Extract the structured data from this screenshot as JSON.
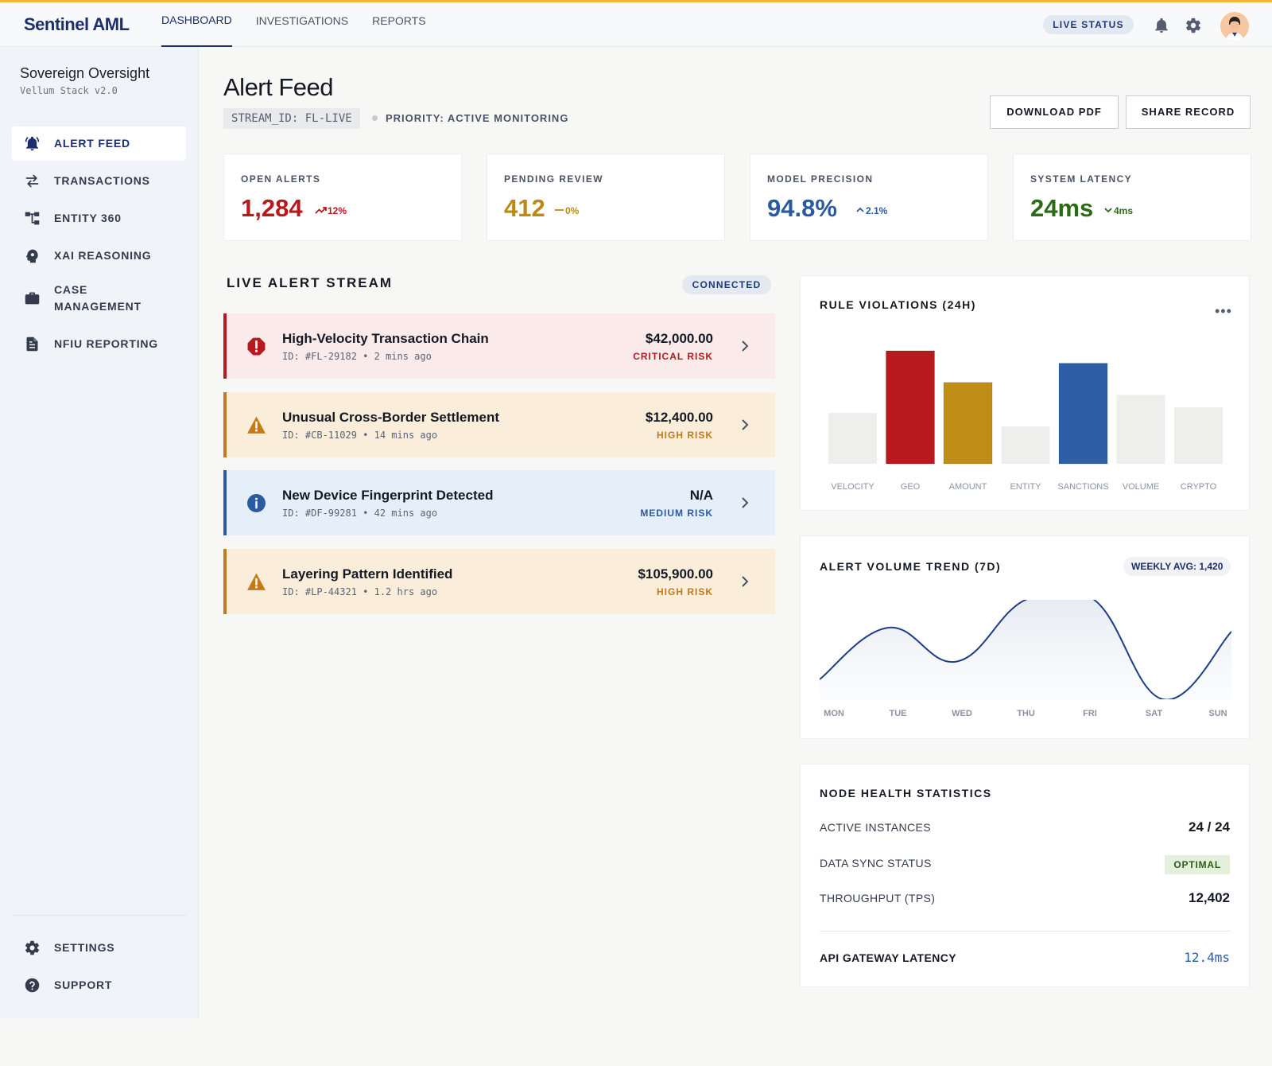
{
  "header": {
    "brand": "Sentinel AML",
    "nav": [
      "DASHBOARD",
      "INVESTIGATIONS",
      "REPORTS"
    ],
    "active_nav": "DASHBOARD",
    "live_status": "LIVE STATUS",
    "icons": [
      "bell-icon",
      "gear-icon",
      "avatar"
    ]
  },
  "sidebar": {
    "org_name": "Sovereign Oversight",
    "org_sub": "Vellum Stack v2.0",
    "items": [
      {
        "label": "ALERT FEED",
        "icon": "bell-icon",
        "active": true
      },
      {
        "label": "TRANSACTIONS",
        "icon": "swap-arrows-icon",
        "active": false
      },
      {
        "label": "ENTITY 360",
        "icon": "hierarchy-icon",
        "active": false
      },
      {
        "label": "XAI REASONING",
        "icon": "brain-gear-icon",
        "active": false
      },
      {
        "label": "CASE\nMANAGEMENT",
        "icon": "briefcase-icon",
        "active": false
      },
      {
        "label": "NFIU REPORTING",
        "icon": "document-icon",
        "active": false
      }
    ],
    "footer_items": [
      {
        "label": "SETTINGS",
        "icon": "gear-icon"
      },
      {
        "label": "SUPPORT",
        "icon": "help-icon"
      }
    ]
  },
  "page": {
    "title": "Alert Feed",
    "stream_id": "STREAM_ID: FL-LIVE",
    "priority": "PRIORITY: ACTIVE MONITORING",
    "download_label": "DOWNLOAD PDF",
    "share_label": "SHARE RECORD"
  },
  "kpis": [
    {
      "label": "OPEN ALERTS",
      "value": "1,284",
      "delta": "12%",
      "trend": "up",
      "color": "#b8191d"
    },
    {
      "label": "PENDING REVIEW",
      "value": "412",
      "delta": "0%",
      "trend": "flat",
      "color": "#b98a17"
    },
    {
      "label": "MODEL PRECISION",
      "value": "94.8%",
      "delta": "2.1%",
      "trend": "up",
      "color": "#2a5aa0"
    },
    {
      "label": "SYSTEM LATENCY",
      "value": "24ms",
      "delta": "4ms",
      "trend": "down",
      "color": "#2d6a17"
    }
  ],
  "stream": {
    "title": "LIVE ALERT STREAM",
    "status": "CONNECTED",
    "alerts": [
      {
        "title": "High-Velocity Transaction Chain",
        "id": "ID: #FL-29182",
        "time": "2 mins ago",
        "amount": "$42,000.00",
        "risk": "CRITICAL RISK",
        "level": "critical"
      },
      {
        "title": "Unusual Cross-Border Settlement",
        "id": "ID: #CB-11029",
        "time": "14 mins ago",
        "amount": "$12,400.00",
        "risk": "HIGH RISK",
        "level": "high"
      },
      {
        "title": "New Device Fingerprint Detected",
        "id": "ID: #DF-99281",
        "time": "42 mins ago",
        "amount": "N/A",
        "risk": "MEDIUM RISK",
        "level": "medium"
      },
      {
        "title": "Layering Pattern Identified",
        "id": "ID: #LP-44321",
        "time": "1.2 hrs ago",
        "amount": "$105,900.00",
        "risk": "HIGH RISK",
        "level": "high"
      }
    ]
  },
  "rule_violations": {
    "title": "RULE VIOLATIONS (24H)",
    "menu": "•••"
  },
  "volume_trend": {
    "title": "ALERT VOLUME TREND (7D)",
    "weekly_avg": "WEEKLY AVG: 1,420"
  },
  "node_health": {
    "title": "NODE HEALTH STATISTICS",
    "rows": [
      {
        "key": "ACTIVE INSTANCES",
        "value": "24 / 24"
      },
      {
        "key": "DATA SYNC STATUS",
        "value": "OPTIMAL"
      },
      {
        "key": "THROUGHPUT (TPS)",
        "value": "12,402"
      }
    ],
    "api_label": "API GATEWAY LATENCY",
    "api_value": "12.4ms"
  },
  "chart_data": [
    {
      "type": "bar",
      "title": "RULE VIOLATIONS (24H)",
      "categories": [
        "VELOCITY",
        "GEO",
        "AMOUNT",
        "ENTITY",
        "SANCTIONS",
        "VOLUME",
        "CRYPTO"
      ],
      "values": [
        45,
        100,
        72,
        33,
        89,
        61,
        50
      ],
      "colors": [
        "#eeeeed",
        "#b8191d",
        "#c08d17",
        "#eeeeed",
        "#2e5ea6",
        "#eeeeed",
        "#eeeeed"
      ],
      "ylim": [
        0,
        100
      ],
      "grid": false
    },
    {
      "type": "area",
      "title": "ALERT VOLUME TREND (7D)",
      "categories": [
        "MON",
        "TUE",
        "WED",
        "THU",
        "FRI",
        "SAT",
        "SUN"
      ],
      "values": [
        20,
        72,
        38,
        100,
        100,
        0,
        68
      ],
      "ylim": [
        0,
        100
      ],
      "grid": false
    }
  ]
}
